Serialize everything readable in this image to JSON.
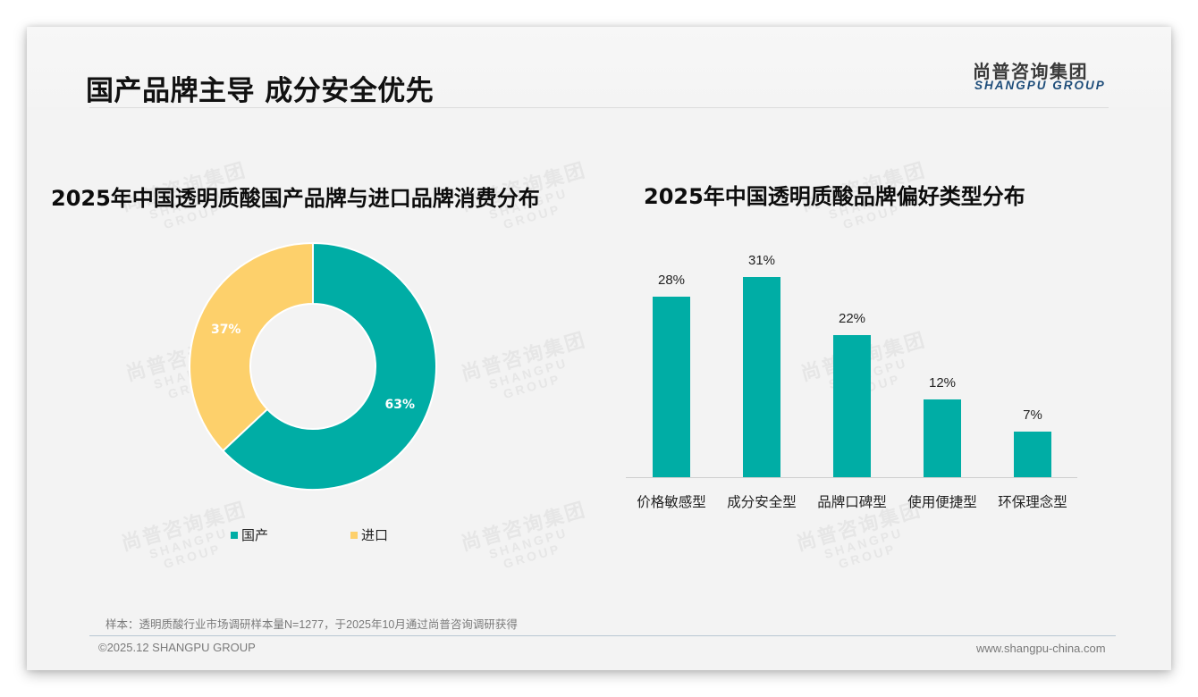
{
  "header": {
    "title": "国产品牌主导 成分安全优先",
    "logo_cn": "尚普咨询集团",
    "logo_en": "SHANGPU GROUP"
  },
  "watermark": {
    "cn": "尚普咨询集团",
    "en": "SHANGPU GROUP"
  },
  "colors": {
    "teal": "#00ADA5",
    "yellow": "#FDD06B",
    "text": "#111111",
    "muted": "#7A7A7A"
  },
  "chart_data": [
    {
      "type": "pie",
      "subtype": "donut",
      "title": "2025年中国透明质酸国产品牌与进口品牌消费分布",
      "categories": [
        "国产",
        "进口"
      ],
      "values": [
        63,
        37
      ],
      "labels": [
        "63%",
        "37%"
      ],
      "colors": [
        "#00ADA5",
        "#FDD06B"
      ],
      "legend_position": "bottom",
      "legend": [
        "国产",
        "进口"
      ]
    },
    {
      "type": "bar",
      "title": "2025年中国透明质酸品牌偏好类型分布",
      "categories": [
        "价格敏感型",
        "成分安全型",
        "品牌口碑型",
        "使用便捷型",
        "环保理念型"
      ],
      "values": [
        28,
        31,
        22,
        12,
        7
      ],
      "labels": [
        "28%",
        "31%",
        "22%",
        "12%",
        "7%"
      ],
      "xlabel": "",
      "ylabel": "",
      "ylim": [
        0,
        35
      ],
      "grid": false,
      "color": "#00ADA5"
    }
  ],
  "footer": {
    "note": "样本：透明质酸行业市场调研样本量N=1277，于2025年10月通过尚普咨询调研获得",
    "copyright": "©2025.12 SHANGPU GROUP",
    "website": "www.shangpu-china.com"
  }
}
